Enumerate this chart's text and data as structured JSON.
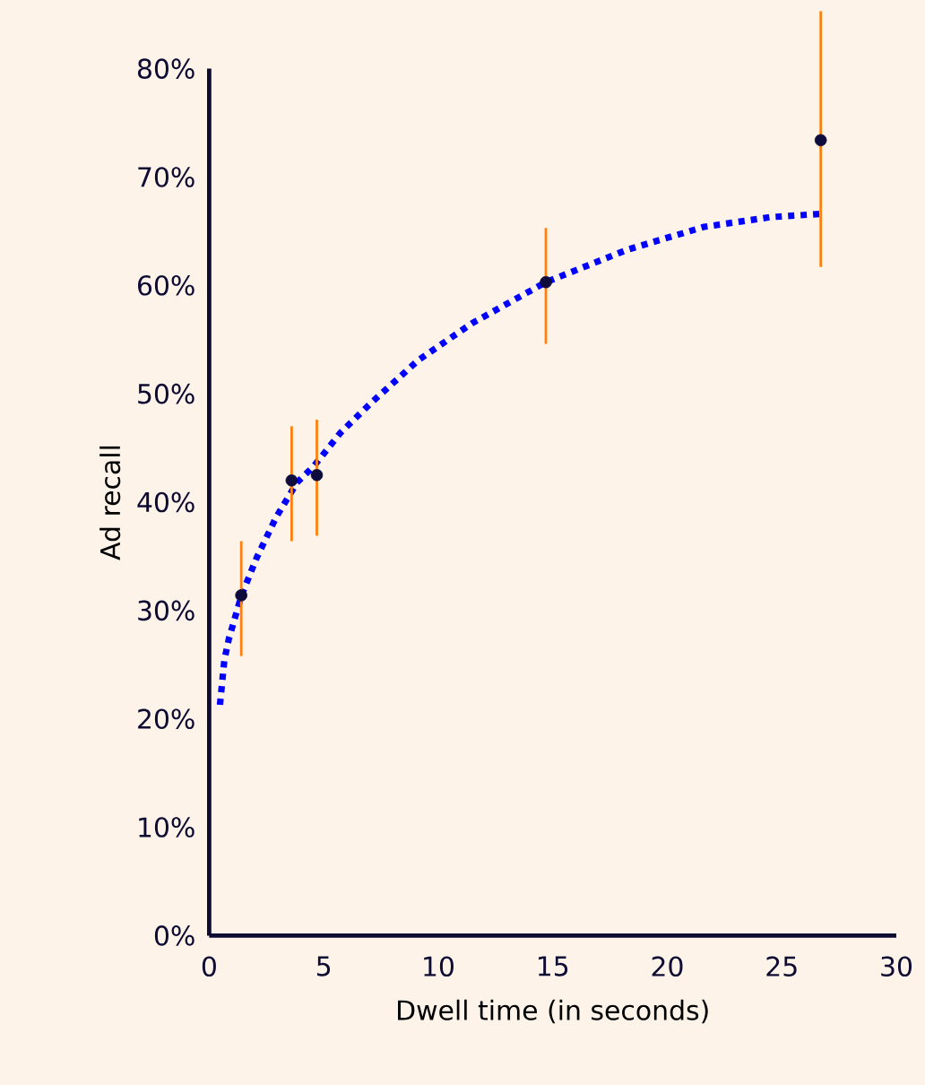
{
  "chart_data": {
    "type": "scatter",
    "xlabel": "Dwell time (in seconds)",
    "ylabel": "Ad recall",
    "xlim": [
      0,
      30
    ],
    "ylim": [
      0,
      80
    ],
    "xticks": [
      0,
      5,
      10,
      15,
      20,
      25,
      30
    ],
    "yticks": [
      {
        "value": 0,
        "label": "0%"
      },
      {
        "value": 10,
        "label": "10%"
      },
      {
        "value": 20,
        "label": "20%"
      },
      {
        "value": 30,
        "label": "30%"
      },
      {
        "value": 40,
        "label": "40%"
      },
      {
        "value": 50,
        "label": "50%"
      },
      {
        "value": 60,
        "label": "60%"
      },
      {
        "value": 70,
        "label": "70%"
      },
      {
        "value": 80,
        "label": "80%"
      }
    ],
    "series": [
      {
        "type": "line",
        "color": "#0000ff",
        "line_style": "dotted",
        "marker": "none",
        "x": [
          0.47,
          0.66,
          0.86,
          1.41,
          2.08,
          2.92,
          3.83,
          4.56,
          5.73,
          7.04,
          9.13,
          11.47,
          14.7,
          18.26,
          21.6,
          24.5,
          26.7
        ],
        "values": [
          21.3,
          25.4,
          27.4,
          31.4,
          34.9,
          38.6,
          41.8,
          43.3,
          46.4,
          49.1,
          53.1,
          56.5,
          60.3,
          63.3,
          65.4,
          66.3,
          66.6
        ]
      },
      {
        "color": "#0e0b3d",
        "marker": "circle",
        "x": [
          1.4,
          3.6,
          4.7,
          14.7,
          26.7
        ],
        "values": [
          31.4,
          42.0,
          42.5,
          60.3,
          73.4
        ],
        "errors": [
          [
            25.8,
            36.4
          ],
          [
            36.4,
            47.0
          ],
          [
            36.9,
            47.6
          ],
          [
            54.6,
            65.3
          ],
          [
            61.7,
            85.3
          ]
        ]
      }
    ]
  }
}
